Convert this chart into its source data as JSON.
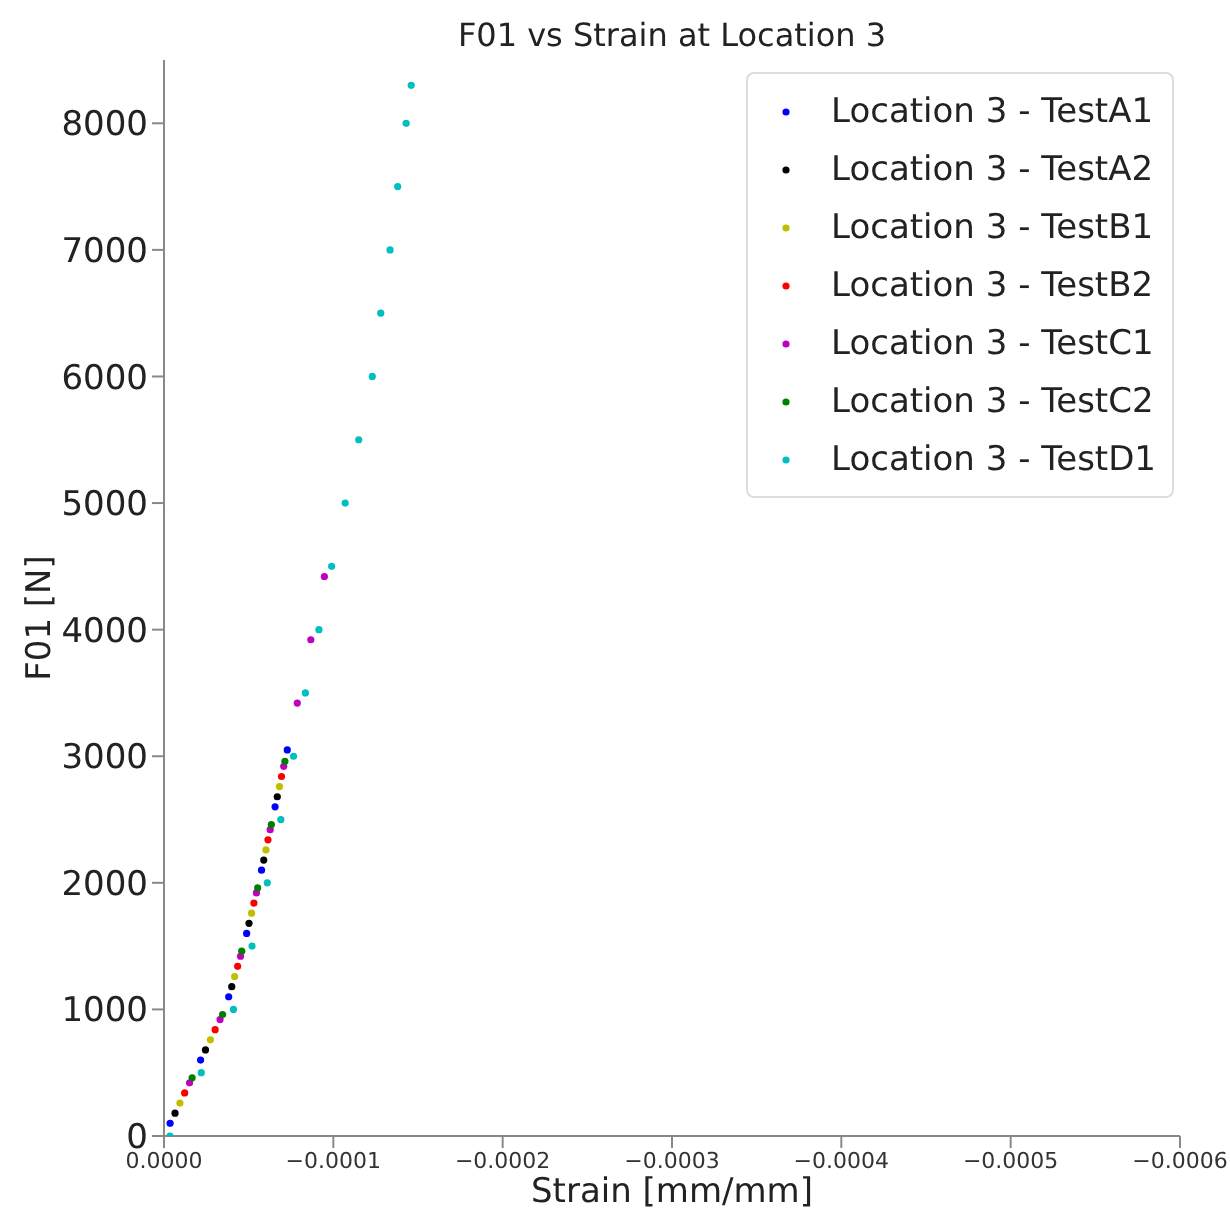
{
  "chart_data": {
    "type": "scatter",
    "title": "F01 vs Strain at Location 3",
    "xlabel": "Strain [mm/mm]",
    "ylabel": "F01 [N]",
    "xlim": [
      0,
      -0.0006
    ],
    "xticks": [
      {
        "value": 0,
        "label": "0.0000"
      },
      {
        "value": -0.0001,
        "label": "−0.0001"
      },
      {
        "value": -0.0002,
        "label": "−0.0002"
      },
      {
        "value": -0.0003,
        "label": "−0.0003"
      },
      {
        "value": -0.0004,
        "label": "−0.0004"
      },
      {
        "value": -0.0005,
        "label": "−0.0005"
      },
      {
        "value": -0.0006,
        "label": "−0.0006"
      }
    ],
    "ylim": [
      0,
      8500
    ],
    "yticks": [
      0,
      1000,
      2000,
      3000,
      4000,
      5000,
      6000,
      7000,
      8000
    ],
    "grid": false,
    "legend": "top right",
    "marker": "circle",
    "series": [
      {
        "name": "Location 3 - TestA1",
        "color": "#0000ff",
        "x": [
          -3.6e-06,
          -2.16e-05,
          -3.82e-05,
          -4.88e-05,
          -5.76e-05,
          -6.56e-05,
          -7.28e-05
        ],
        "values": [
          100,
          600,
          1100,
          1600,
          2100,
          2600,
          3050
        ]
      },
      {
        "name": "Location 3 - TestA2",
        "color": "#000000",
        "x": [
          -6.5e-06,
          -2.45e-05,
          -4e-05,
          -5.02e-05,
          -5.89e-05,
          -6.69e-05
        ],
        "values": [
          180,
          680,
          1180,
          1680,
          2180,
          2680
        ]
      },
      {
        "name": "Location 3 - TestB1",
        "color": "#bfbf00",
        "x": [
          -9.4e-06,
          -2.74e-05,
          -4.17e-05,
          -5.17e-05,
          -6.02e-05,
          -6.82e-05
        ],
        "values": [
          260,
          760,
          1260,
          1760,
          2260,
          2760
        ]
      },
      {
        "name": "Location 3 - TestB2",
        "color": "#ff0000",
        "x": [
          -1.22e-05,
          -3.02e-05,
          -4.35e-05,
          -5.31e-05,
          -6.14e-05,
          -6.94e-05
        ],
        "values": [
          340,
          840,
          1340,
          1840,
          2340,
          2840
        ]
      },
      {
        "name": "Location 3 - TestC1",
        "color": "#bf00bf",
        "x": [
          -1.51e-05,
          -3.31e-05,
          -4.52e-05,
          -5.46e-05,
          -6.27e-05,
          -7.07e-05,
          -7.87e-05,
          -8.67e-05,
          -9.47e-05
        ],
        "values": [
          420,
          920,
          1420,
          1920,
          2420,
          2920,
          3420,
          3920,
          4420
        ]
      },
      {
        "name": "Location 3 - TestC2",
        "color": "#008000",
        "x": [
          -1.66e-05,
          -3.46e-05,
          -4.59e-05,
          -5.53e-05,
          -6.34e-05,
          -7.14e-05
        ],
        "values": [
          460,
          960,
          1460,
          1960,
          2460,
          2960
        ]
      },
      {
        "name": "Location 3 - TestD1",
        "color": "#00bfbf",
        "x": [
          -3.5e-06,
          -2.2e-05,
          -4.1e-05,
          -5.2e-05,
          -6.1e-05,
          -6.9e-05,
          -7.65e-05,
          -8.35e-05,
          -9.15e-05,
          -9.9e-05,
          -0.000107,
          -0.000115,
          -0.000123,
          -0.000128,
          -0.0001335,
          -0.000138,
          -0.000143,
          -0.000146
        ],
        "values": [
          0,
          500,
          1000,
          1500,
          2000,
          2500,
          3000,
          3500,
          4000,
          4500,
          5000,
          5500,
          6000,
          6500,
          7000,
          7500,
          8000,
          8300
        ]
      }
    ]
  }
}
